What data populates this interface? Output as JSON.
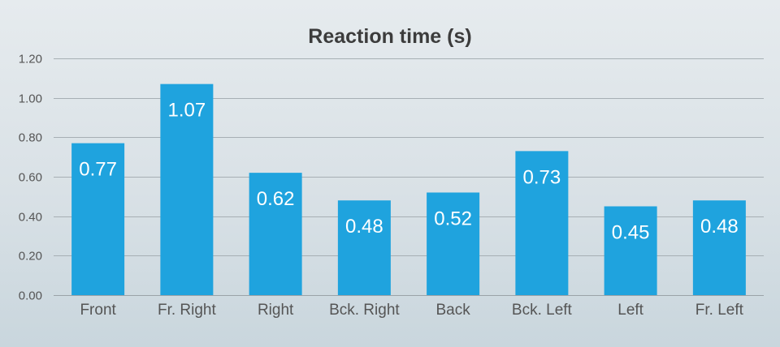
{
  "chart_data": {
    "type": "bar",
    "title": "Reaction time (s)",
    "xlabel": "",
    "ylabel": "",
    "categories": [
      "Front",
      "Fr. Right",
      "Right",
      "Bck. Right",
      "Back",
      "Bck. Left",
      "Left",
      "Fr. Left"
    ],
    "values": [
      0.77,
      1.07,
      0.62,
      0.48,
      0.52,
      0.73,
      0.45,
      0.48
    ],
    "data_labels": [
      "0.77",
      "1.07",
      "0.62",
      "0.48",
      "0.52",
      "0.73",
      "0.45",
      "0.48"
    ],
    "ylim": [
      0,
      1.2
    ],
    "y_ticks": [
      "0.00",
      "0.20",
      "0.40",
      "0.60",
      "0.80",
      "1.00",
      "1.20"
    ],
    "grid": true,
    "legend": "none",
    "colors": {
      "bar": "#1fa3de",
      "grid": "#a7afb4",
      "label": "#ffffff"
    }
  }
}
